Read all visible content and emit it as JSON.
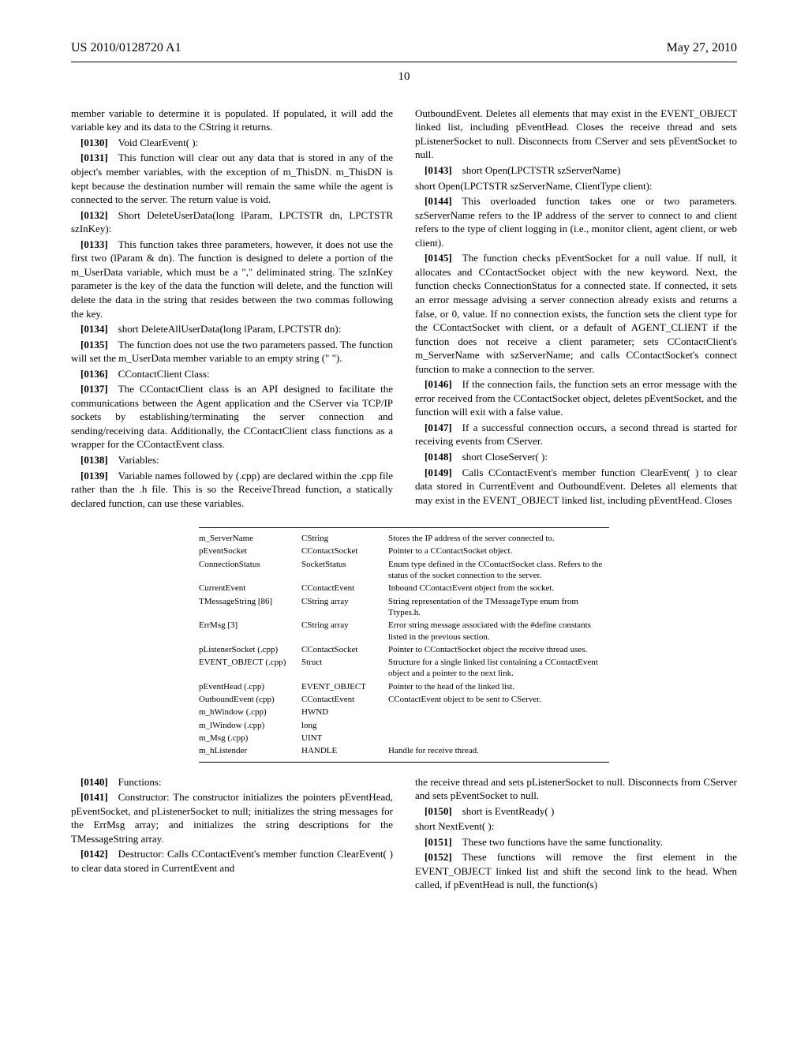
{
  "header": {
    "pub_number": "US 2010/0128720 A1",
    "pub_date": "May 27, 2010",
    "page_number": "10"
  },
  "left_column": [
    {
      "num": null,
      "text": "member variable to determine it is populated. If populated, it will add the variable key and its data to the CString it returns."
    },
    {
      "num": "[0130]",
      "text": "Void ClearEvent( ):"
    },
    {
      "num": "[0131]",
      "text": "This function will clear out any data that is stored in any of the object's member variables, with the exception of m_ThisDN. m_ThisDN is kept because the destination number will remain the same while the agent is connected to the server. The return value is void."
    },
    {
      "num": "[0132]",
      "text": "Short DeleteUserData(long lParam, LPCTSTR dn, LPCTSTR szInKey):"
    },
    {
      "num": "[0133]",
      "text": "This function takes three parameters, however, it does not use the first two (lParam & dn). The function is designed to delete a portion of the m_UserData variable, which must be a \",\" deliminated string. The szInKey parameter is the key of the data the function will delete, and the function will delete the data in the string that resides between the two commas following the key."
    },
    {
      "num": "[0134]",
      "text": "short DeleteAllUserData(long lParam, LPCTSTR dn):"
    },
    {
      "num": "[0135]",
      "text": "The function does not use the two parameters passed. The function will set the m_UserData member variable to an empty string (\" \")."
    },
    {
      "num": "[0136]",
      "text": "CContactClient Class:"
    },
    {
      "num": "[0137]",
      "text": "The CContactClient class is an API designed to facilitate the communications between the Agent application and the CServer via TCP/IP sockets by establishing/terminating the server connection and sending/receiving data. Additionally, the CContactClient class functions as a wrapper for the CContactEvent class."
    },
    {
      "num": "[0138]",
      "text": "Variables:"
    },
    {
      "num": "[0139]",
      "text": "Variable names followed by (.cpp) are declared within the .cpp file rather than the .h file. This is so the ReceiveThread function, a statically declared function, can use these variables."
    }
  ],
  "right_column_top": [
    {
      "num": null,
      "text": "OutboundEvent. Deletes all elements that may exist in the EVENT_OBJECT linked list, including pEventHead. Closes the receive thread and sets pListenerSocket to null. Disconnects from CServer and sets pEventSocket to null."
    },
    {
      "num": "[0143]",
      "text": "short Open(LPCTSTR szServerName)"
    },
    {
      "num": null,
      "text": "short Open(LPCTSTR szServerName, ClientType client):"
    },
    {
      "num": "[0144]",
      "text": "This overloaded function takes one or two parameters. szServerName refers to the IP address of the server to connect to and client refers to the type of client logging in (i.e., monitor client, agent client, or web client)."
    },
    {
      "num": "[0145]",
      "text": "The function checks pEventSocket for a null value. If null, it allocates and CContactSocket object with the new keyword. Next, the function checks ConnectionStatus for a connected state. If connected, it sets an error message advising a server connection already exists and returns a false, or 0, value. If no connection exists, the function sets the client type for the CContactSocket with client, or a default of AGENT_CLIENT if the function does not receive a client parameter; sets CContactClient's m_ServerName with szServerName; and calls CContactSocket's connect function to make a connection to the server."
    },
    {
      "num": "[0146]",
      "text": "If the connection fails, the function sets an error message with the error received from the CContactSocket object, deletes pEventSocket, and the function will exit with a false value."
    },
    {
      "num": "[0147]",
      "text": "If a successful connection occurs, a second thread is started for receiving events from CServer."
    },
    {
      "num": "[0148]",
      "text": "short CloseServer( ):"
    },
    {
      "num": "[0149]",
      "text": "Calls CContactEvent's member function ClearEvent( ) to clear data stored in CurrentEvent and OutboundEvent. Deletes all elements that may exist in the EVENT_OBJECT linked list, including pEventHead. Closes"
    }
  ],
  "table_rows": [
    [
      "m_ServerName",
      "CString",
      "Stores the IP address of the server connected to."
    ],
    [
      "pEventSocket",
      "CContactSocket",
      "Pointer to a CContactSocket object."
    ],
    [
      "ConnectionStatus",
      "SocketStatus",
      "Enum type defined in the CContactSocket class. Refers to the status of the socket connection to the server."
    ],
    [
      "CurrentEvent",
      "CContactEvent",
      "Inbound CContactEvent object from the socket."
    ],
    [
      "TMessageString [86]",
      "CString array",
      "String representation of the TMessageType enum from Ttypes.h."
    ],
    [
      "ErrMsg [3]",
      "CString array",
      "Error string message associated with the #define constants listed in the previous section."
    ],
    [
      "pListenerSocket (.cpp)",
      "CContactSocket",
      "Pointer to CContactSocket object the receive thread uses."
    ],
    [
      "EVENT_OBJECT (.cpp)",
      "Struct",
      "Structure for a single linked list containing a CContactEvent object and a pointer to the next link."
    ],
    [
      "pEventHead (.cpp)",
      "EVENT_OBJECT",
      "Pointer to the head of the linked list."
    ],
    [
      "OutboundEvent (cpp)",
      "CContactEvent",
      "CContactEvent object to be sent to CServer."
    ],
    [
      "m_hWindow (.cpp)",
      "HWND",
      ""
    ],
    [
      "m_lWindow (.cpp)",
      "long",
      ""
    ],
    [
      "m_Msg (.cpp)",
      "UINT",
      ""
    ],
    [
      "m_hListender",
      "HANDLE",
      "Handle for receive thread."
    ]
  ],
  "left_column_bottom": [
    {
      "num": "[0140]",
      "text": "Functions:"
    },
    {
      "num": "[0141]",
      "text": "Constructor: The constructor initializes the pointers pEventHead, pEventSocket, and pListenerSocket to null; initializes the string messages for the ErrMsg array; and initializes the string descriptions for the TMessageString array."
    },
    {
      "num": "[0142]",
      "text": "Destructor: Calls CContactEvent's member function ClearEvent( ) to clear data stored in CurrentEvent and"
    }
  ],
  "right_column_bottom": [
    {
      "num": null,
      "text": "the receive thread and sets pListenerSocket to null. Disconnects from CServer and sets pEventSocket to null."
    },
    {
      "num": "[0150]",
      "text": "short is EventReady( )"
    },
    {
      "num": null,
      "text": "short NextEvent( ):"
    },
    {
      "num": "[0151]",
      "text": "These two functions have the same functionality."
    },
    {
      "num": "[0152]",
      "text": "These functions will remove the first element in the EVENT_OBJECT linked list and shift the second link to the head. When called, if pEventHead is null, the function(s)"
    }
  ]
}
